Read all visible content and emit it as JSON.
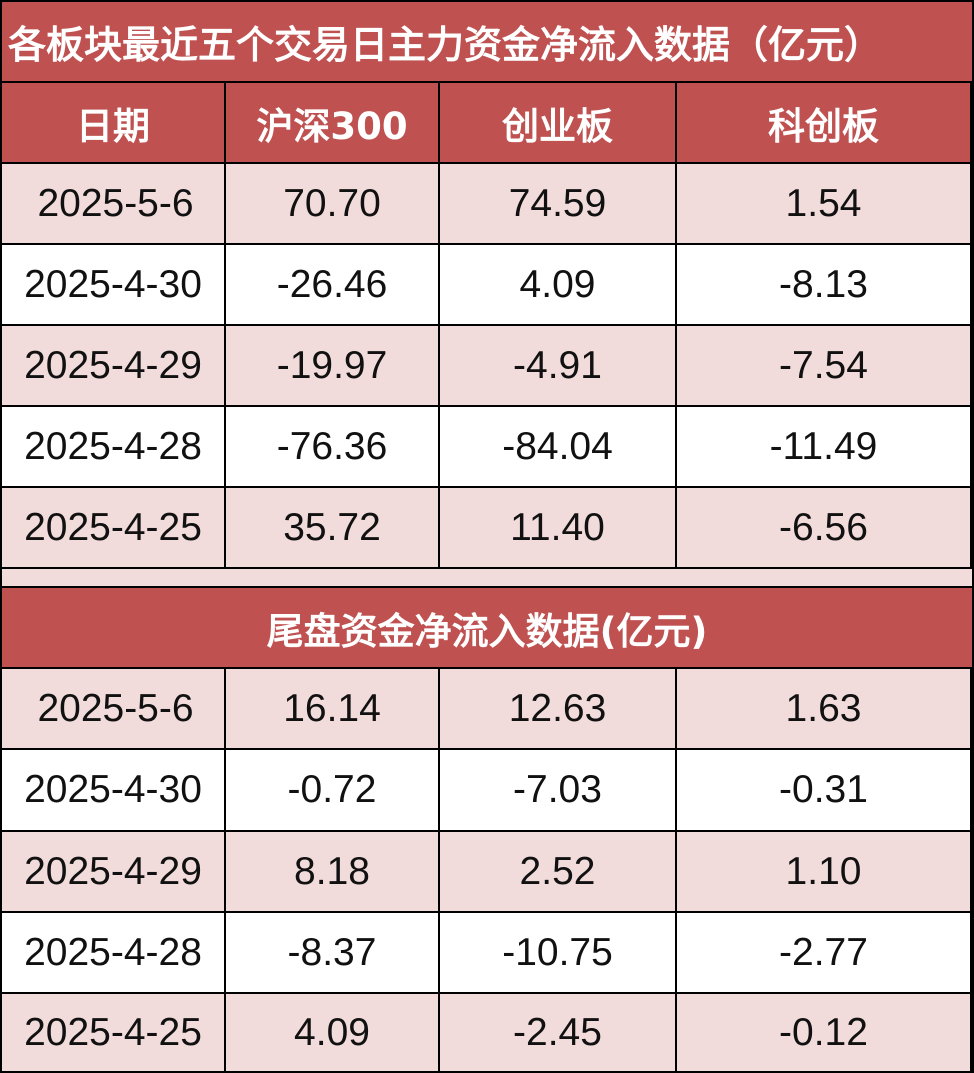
{
  "title": "各板块最近五个交易日主力资金净流入数据（亿元）",
  "headers": [
    "日期",
    "沪深300",
    "创业板",
    "科创板"
  ],
  "main_rows": [
    [
      "2025-5-6",
      "70.70",
      "74.59",
      "1.54"
    ],
    [
      "2025-4-30",
      "-26.46",
      "4.09",
      "-8.13"
    ],
    [
      "2025-4-29",
      "-19.97",
      "-4.91",
      "-7.54"
    ],
    [
      "2025-4-28",
      "-76.36",
      "-84.04",
      "-11.49"
    ],
    [
      "2025-4-25",
      "35.72",
      "11.40",
      "-6.56"
    ]
  ],
  "section_title": "尾盘资金净流入数据(亿元)",
  "tail_rows": [
    [
      "2025-5-6",
      "16.14",
      "12.63",
      "1.63"
    ],
    [
      "2025-4-30",
      "-0.72",
      "-7.03",
      "-0.31"
    ],
    [
      "2025-4-29",
      "8.18",
      "2.52",
      "1.10"
    ],
    [
      "2025-4-28",
      "-8.37",
      "-10.75",
      "-2.77"
    ],
    [
      "2025-4-25",
      "4.09",
      "-2.45",
      "-0.12"
    ]
  ],
  "colors": {
    "header_bg": "#bf5150",
    "row_pink": "#f2dcdb",
    "row_white": "#ffffff",
    "grid_line": "#000000"
  }
}
